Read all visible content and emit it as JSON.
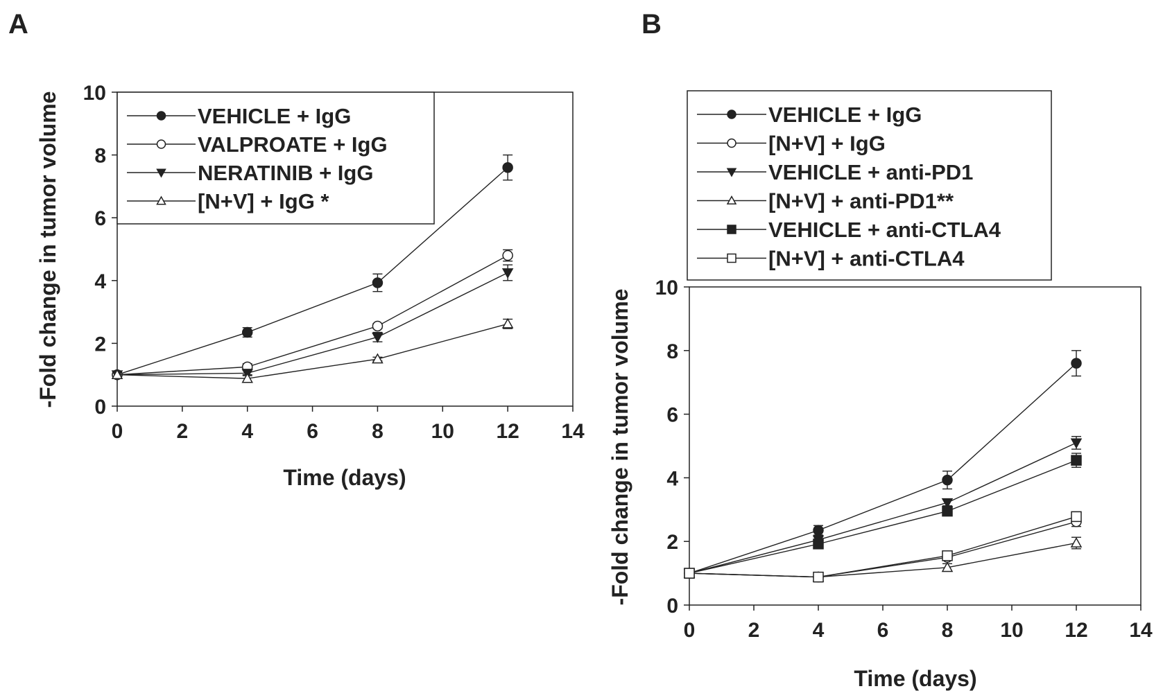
{
  "chart_data": [
    {
      "panel_label": "A",
      "type": "line",
      "xlabel": "Time (days)",
      "ylabel": "-Fold change in tumor volume",
      "xlim": [
        0,
        14
      ],
      "ylim": [
        0,
        10
      ],
      "xticks": [
        0,
        2,
        4,
        6,
        8,
        10,
        12,
        14
      ],
      "yticks": [
        0,
        2,
        4,
        6,
        8,
        10
      ],
      "grid": false,
      "legend_position": "top-left",
      "x": [
        0,
        4,
        8,
        12
      ],
      "series": [
        {
          "name": "VEHICLE + IgG",
          "marker": "filled-circle",
          "values": [
            1,
            2.35,
            3.93,
            7.6
          ],
          "error": [
            0.1,
            0.15,
            0.28,
            0.4
          ]
        },
        {
          "name": "VALPROATE + IgG",
          "marker": "open-circle",
          "values": [
            1,
            1.25,
            2.55,
            4.8
          ],
          "error": [
            0.1,
            0.1,
            0.08,
            0.18
          ]
        },
        {
          "name": "NERATINIB + IgG",
          "marker": "filled-triangle-down",
          "values": [
            1,
            1.05,
            2.2,
            4.25
          ],
          "error": [
            0.1,
            0.08,
            0.15,
            0.25
          ]
        },
        {
          "name": "[N+V] + IgG *",
          "marker": "open-triangle-up",
          "values": [
            1,
            0.88,
            1.5,
            2.62
          ],
          "error": [
            0.1,
            0.12,
            0.06,
            0.15
          ]
        }
      ]
    },
    {
      "panel_label": "B",
      "type": "line",
      "xlabel": "Time (days)",
      "ylabel": "-Fold change in tumor volume",
      "xlim": [
        0,
        14
      ],
      "ylim": [
        0,
        10
      ],
      "xticks": [
        0,
        2,
        4,
        6,
        8,
        10,
        12,
        14
      ],
      "yticks": [
        0,
        2,
        4,
        6,
        8,
        10
      ],
      "grid": false,
      "legend_position": "above-plot",
      "x": [
        0,
        4,
        8,
        12
      ],
      "series": [
        {
          "name": "VEHICLE + IgG",
          "marker": "filled-circle",
          "values": [
            1,
            2.35,
            3.93,
            7.6
          ],
          "error": [
            0.15,
            0.15,
            0.28,
            0.4
          ]
        },
        {
          "name": "[N+V] + IgG",
          "marker": "open-circle",
          "values": [
            1,
            0.88,
            1.5,
            2.62
          ],
          "error": [
            0.15,
            0.12,
            0.08,
            0.15
          ]
        },
        {
          "name": "VEHICLE + anti-PD1",
          "marker": "filled-triangle-down",
          "values": [
            1,
            2.05,
            3.22,
            5.1
          ],
          "error": [
            0.15,
            0.1,
            0.1,
            0.2
          ]
        },
        {
          "name": "[N+V] + anti-PD1**",
          "marker": "open-triangle-up",
          "values": [
            1,
            0.88,
            1.18,
            1.95
          ],
          "error": [
            0.15,
            0.12,
            0.12,
            0.18
          ]
        },
        {
          "name": "VEHICLE + anti-CTLA4",
          "marker": "filled-square",
          "values": [
            1,
            1.92,
            2.95,
            4.55
          ],
          "error": [
            0.15,
            0.1,
            0.12,
            0.22
          ]
        },
        {
          "name": "[N+V] + anti-CTLA4",
          "marker": "open-square",
          "values": [
            1,
            0.88,
            1.55,
            2.78
          ],
          "error": [
            0.15,
            0.15,
            0.06,
            0.15
          ]
        }
      ]
    }
  ]
}
